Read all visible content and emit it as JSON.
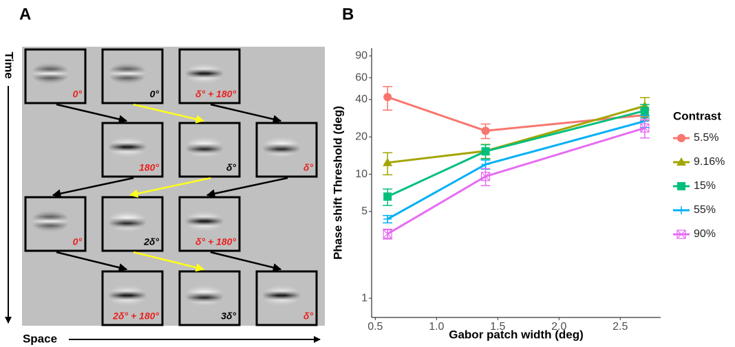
{
  "panel_labels": [
    "A",
    "B"
  ],
  "diagram": {
    "time_label": "Time",
    "space_label": "Space",
    "frames": [
      {
        "label": "0°",
        "color": "#e8211e"
      },
      {
        "label": "0°",
        "color": "#000000"
      },
      {
        "label": "δ° + 180°",
        "color": "#e8211e"
      },
      {
        "label": "180°",
        "color": "#e8211e"
      },
      {
        "label": "δ°",
        "color": "#000000"
      },
      {
        "label": "δ°",
        "color": "#e8211e"
      },
      {
        "label": "0°",
        "color": "#e8211e"
      },
      {
        "label": "2δ°",
        "color": "#000000"
      },
      {
        "label": "δ° + 180°",
        "color": "#e8211e"
      },
      {
        "label": "2δ° + 180°",
        "color": "#e8211e"
      },
      {
        "label": "3δ°",
        "color": "#000000"
      },
      {
        "label": "δ°",
        "color": "#e8211e"
      }
    ]
  },
  "chart_data": {
    "type": "line",
    "x_label": "Gabor patch width (deg)",
    "y_label": "Phase shift Threshold (deg)",
    "log_y": true,
    "legend_title": "Contrast",
    "legend_position": "right",
    "x": [
      0.6,
      1.4,
      2.7
    ],
    "xlim": [
      0.47,
      2.83
    ],
    "xticks": [
      0.5,
      {
        "value": 1,
        "label": "1.0"
      },
      1.5,
      {
        "value": 2,
        "label": "2.0"
      },
      2.5
    ],
    "ylim": [
      0.7,
      104
    ],
    "yticks": [
      1,
      5,
      10,
      20,
      40,
      60,
      90
    ],
    "series": [
      {
        "name": "5.5%",
        "color": "#f8766d",
        "marker": "circle",
        "values": [
          41.9,
          22.4,
          30
        ],
        "errors": [
          9,
          3,
          3
        ]
      },
      {
        "name": "9.16%",
        "color": "#a3a500",
        "marker": "triangle",
        "values": [
          12.4,
          15.4,
          35.5
        ],
        "errors": [
          2.5,
          2,
          6
        ]
      },
      {
        "name": "15%",
        "color": "#00bf7d",
        "marker": "square",
        "values": [
          6.6,
          15.3,
          32.5
        ],
        "errors": [
          1,
          2,
          4
        ]
      },
      {
        "name": "55%",
        "color": "#00b0f6",
        "marker": "plus",
        "values": [
          4.35,
          12,
          26.8
        ],
        "errors": [
          0.3,
          1,
          3
        ]
      },
      {
        "name": "90%",
        "color": "#e76bf3",
        "marker": "boxx",
        "values": [
          3.3,
          9.6,
          23.6
        ],
        "errors": [
          0.3,
          1.5,
          4
        ]
      }
    ]
  }
}
